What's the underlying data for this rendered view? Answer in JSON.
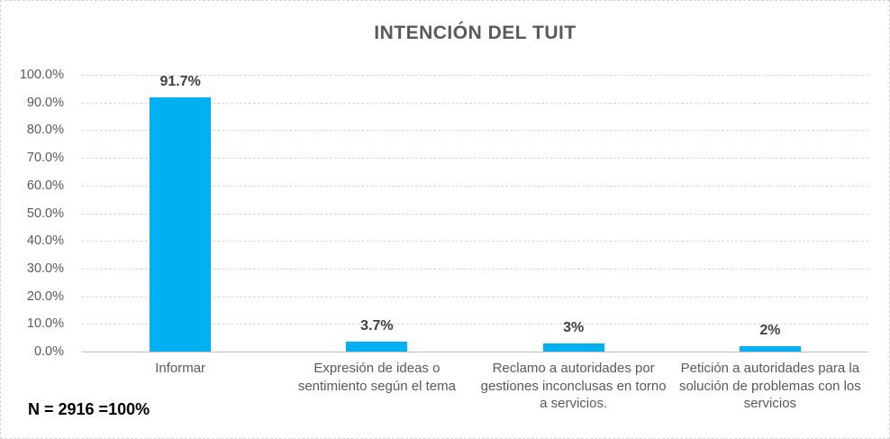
{
  "chart_data": {
    "type": "bar",
    "title": "INTENCIÓN DEL TUIT",
    "categories": [
      "Informar",
      "Expresión de ideas o sentimiento según el tema",
      "Reclamo a autoridades por gestiones inconclusas en torno a servicios.",
      "Petición a autoridades para la solución de problemas con los servicios"
    ],
    "values": [
      91.7,
      3.7,
      3,
      2
    ],
    "value_labels": [
      "91.7%",
      "3.7%",
      "3%",
      "2%"
    ],
    "ylim": [
      0,
      100
    ],
    "ytick_step": 10,
    "ytick_labels": [
      "100.0%",
      "90.0%",
      "80.0%",
      "70.0%",
      "60.0%",
      "50.0%",
      "40.0%",
      "30.0%",
      "20.0%",
      "10.0%",
      "0.0%"
    ],
    "grid": true,
    "legend": "none",
    "annotation": "N = 2916 =100%"
  },
  "colors": {
    "bar": "#00b0f0",
    "title_text": "#595959",
    "axis_text": "#595959",
    "data_label_text": "#3f3f3f",
    "gridline": "#d9d9d9",
    "axis_line": "#bfbfbf",
    "frame_border": "#d4d4d4",
    "background": "#ffffff"
  }
}
